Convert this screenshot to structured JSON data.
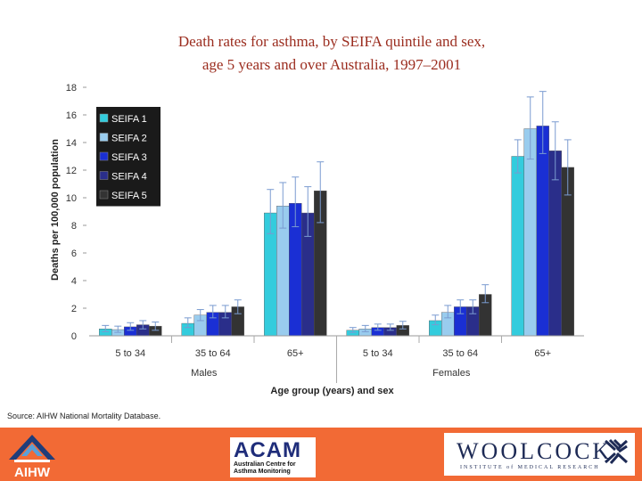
{
  "chart_data": {
    "type": "bar",
    "title": [
      "Death rates for asthma, by SEIFA quintile and sex,",
      "age 5 years and over Australia, 1997–2001"
    ],
    "ylabel": "Deaths per 100,000 population",
    "xlabel": "Age group (years) and sex",
    "ylim": [
      0,
      18
    ],
    "yticks": [
      "0",
      "2",
      "4",
      "6",
      "8",
      "10",
      "12",
      "14",
      "16",
      "18"
    ],
    "groups": [
      "Males",
      "Females"
    ],
    "categories": [
      "5 to 34",
      "35 to 64",
      "65+",
      "5 to 34",
      "35 to 64",
      "65+"
    ],
    "series": [
      {
        "name": "SEIFA 1",
        "color": "#33ccdd",
        "values": [
          0.5,
          0.9,
          8.9,
          0.4,
          1.1,
          13.0
        ],
        "err_low": [
          0.3,
          0.6,
          7.4,
          0.25,
          0.8,
          11.8
        ],
        "err_high": [
          0.75,
          1.3,
          10.6,
          0.6,
          1.5,
          14.2
        ]
      },
      {
        "name": "SEIFA 2",
        "color": "#99ccee",
        "values": [
          0.45,
          1.5,
          9.4,
          0.5,
          1.7,
          15.0
        ],
        "err_low": [
          0.25,
          1.1,
          7.8,
          0.3,
          1.3,
          12.8
        ],
        "err_high": [
          0.7,
          1.9,
          11.1,
          0.75,
          2.2,
          17.3
        ]
      },
      {
        "name": "SEIFA 3",
        "color": "#1a2fd4",
        "values": [
          0.65,
          1.7,
          9.6,
          0.6,
          2.1,
          15.2
        ],
        "err_low": [
          0.4,
          1.3,
          7.9,
          0.4,
          1.6,
          13.2
        ],
        "err_high": [
          0.95,
          2.2,
          11.5,
          0.85,
          2.6,
          17.7
        ]
      },
      {
        "name": "SEIFA 4",
        "color": "#2a2e8a",
        "values": [
          0.8,
          1.7,
          8.9,
          0.6,
          2.1,
          13.4
        ],
        "err_low": [
          0.5,
          1.3,
          7.2,
          0.4,
          1.6,
          11.3
        ],
        "err_high": [
          1.1,
          2.2,
          10.8,
          0.85,
          2.6,
          15.5
        ]
      },
      {
        "name": "SEIFA 5",
        "color": "#333333",
        "values": [
          0.7,
          2.1,
          10.5,
          0.75,
          3.0,
          12.2
        ],
        "err_low": [
          0.4,
          1.6,
          8.2,
          0.5,
          2.4,
          10.2
        ],
        "err_high": [
          1.0,
          2.6,
          12.6,
          1.05,
          3.7,
          14.2
        ]
      }
    ],
    "legend_placement": "top-left",
    "grid": false
  },
  "source_note": "Source: AIHW National Mortality Database.",
  "footer": {
    "aihw_label": "AIHW",
    "acam_label": "ACAM",
    "acam_sub": "Australian Centre for Asthma Monitoring",
    "woolcock_label": "WOOLCOCK",
    "woolcock_sub": "INSTITUTE of MEDICAL RESEARCH",
    "bg_color": "#f26a35"
  }
}
